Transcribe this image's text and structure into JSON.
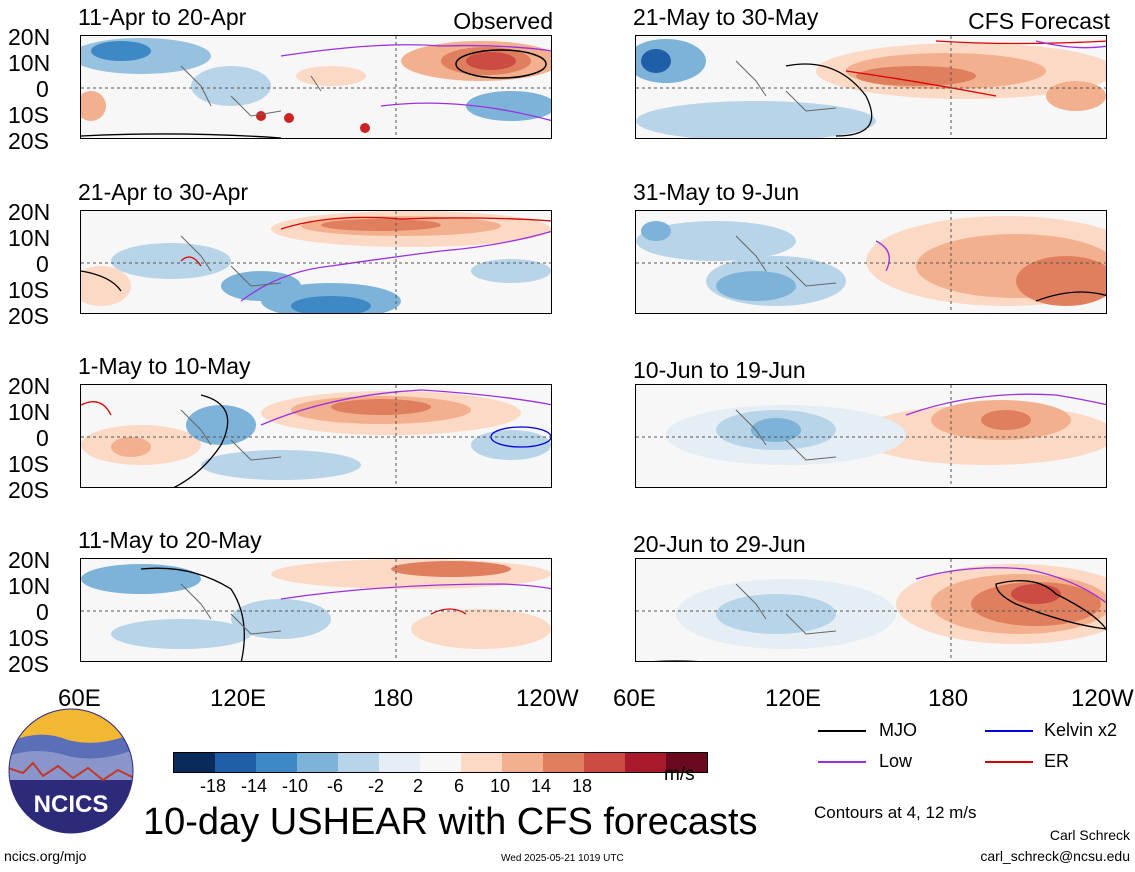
{
  "panels": {
    "p1": {
      "period": "11-Apr to 20-Apr",
      "tag": "Observed"
    },
    "p2": {
      "period": "21-Apr to 30-Apr"
    },
    "p3": {
      "period": "1-May to 10-May"
    },
    "p4": {
      "period": "11-May to 20-May"
    },
    "p5": {
      "period": "21-May to 30-May",
      "tag": "CFS Forecast"
    },
    "p6": {
      "period": "31-May to 9-Jun"
    },
    "p7": {
      "period": "10-Jun to 19-Jun"
    },
    "p8": {
      "period": "20-Jun to 29-Jun"
    }
  },
  "lat_labels": [
    "20N",
    "10N",
    "0",
    "10S",
    "20S"
  ],
  "lon_labels": [
    "60E",
    "120E",
    "180",
    "120W"
  ],
  "colorbar": {
    "colors": [
      "#0a2a5c",
      "#1f5fa8",
      "#3d88c5",
      "#7db3d8",
      "#b7d4e8",
      "#e4eef4",
      "#f7f7f7",
      "#fbd9c4",
      "#f3b08e",
      "#e07f5e",
      "#cc4c43",
      "#a8192c",
      "#6b0a1e"
    ],
    "ticks": [
      "-18",
      "-14",
      "-10",
      "-6",
      "-2",
      "2",
      "6",
      "10",
      "14",
      "18"
    ],
    "units": "m/s"
  },
  "legend": {
    "mjo": {
      "label": "MJO",
      "color": "#000000"
    },
    "low": {
      "label": "Low",
      "color": "#9b30e0"
    },
    "kelvin": {
      "label": "Kelvin x2",
      "color": "#0000dd"
    },
    "er": {
      "label": "ER",
      "color": "#dd0000"
    }
  },
  "title": "10-day USHEAR with CFS forecasts",
  "contour_note": "Contours at 4, 12 m/s",
  "author": "Carl Schreck",
  "email": "carl_schreck@ncsu.edu",
  "website": "ncics.org/mjo",
  "timestamp": "Wed 2025-05-21 1019 UTC",
  "logo_text": "NCICS"
}
